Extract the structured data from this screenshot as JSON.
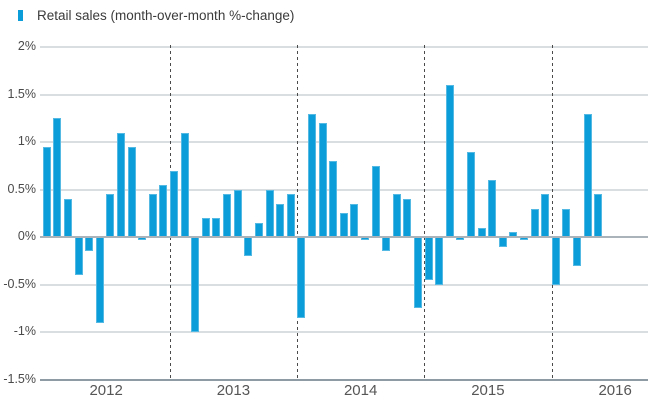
{
  "legend": {
    "label": "Retail sales (month-over-month %-change)"
  },
  "colors": {
    "bar": "#0b9dd9",
    "gridline": "#d9dee1",
    "zero_line": "#aab3ba",
    "axis_line": "#8e9ba4",
    "year_separator": "#4a4a4a",
    "tick_text": "#4a4a4a",
    "year_text": "#565656",
    "title_text": "#3b3b3b"
  },
  "chart_data": {
    "type": "bar",
    "title": "Retail sales (month-over-month %-change)",
    "xlabel": "",
    "ylabel": "",
    "ylim": [
      -1.5,
      2
    ],
    "grid": true,
    "legend_position": "top-left",
    "y_ticks": [
      {
        "value": 2,
        "label": "2%"
      },
      {
        "value": 1.5,
        "label": "1.5%"
      },
      {
        "value": 1,
        "label": "1%"
      },
      {
        "value": 0.5,
        "label": "0.5%"
      },
      {
        "value": 0,
        "label": "0%"
      },
      {
        "value": -0.5,
        "label": "-0.5%"
      },
      {
        "value": -1,
        "label": "-1%"
      },
      {
        "value": -1.5,
        "label": "-1.5%"
      }
    ],
    "x_year_labels": [
      "2012",
      "2013",
      "2014",
      "2015",
      "2016"
    ],
    "year_separators_before": [
      "2013",
      "2014",
      "2015",
      "2016"
    ],
    "x": [
      "2012-01",
      "2012-02",
      "2012-03",
      "2012-04",
      "2012-05",
      "2012-06",
      "2012-07",
      "2012-08",
      "2012-09",
      "2012-10",
      "2012-11",
      "2012-12",
      "2013-01",
      "2013-02",
      "2013-03",
      "2013-04",
      "2013-05",
      "2013-06",
      "2013-07",
      "2013-08",
      "2013-09",
      "2013-10",
      "2013-11",
      "2013-12",
      "2014-01",
      "2014-02",
      "2014-03",
      "2014-04",
      "2014-05",
      "2014-06",
      "2014-07",
      "2014-08",
      "2014-09",
      "2014-10",
      "2014-11",
      "2014-12",
      "2015-01",
      "2015-02",
      "2015-03",
      "2015-04",
      "2015-05",
      "2015-06",
      "2015-07",
      "2015-08",
      "2015-09",
      "2015-10",
      "2015-11",
      "2015-12",
      "2016-01",
      "2016-02",
      "2016-03",
      "2016-04",
      "2016-05"
    ],
    "values": [
      0.95,
      1.25,
      0.4,
      -0.4,
      -0.15,
      -0.9,
      0.45,
      1.1,
      0.95,
      -0.03,
      0.45,
      0.55,
      0.7,
      1.1,
      -1.0,
      0.2,
      0.2,
      0.45,
      0.5,
      -0.2,
      0.15,
      0.5,
      0.35,
      0.45,
      -0.85,
      1.3,
      1.2,
      0.8,
      0.25,
      0.35,
      -0.03,
      0.75,
      -0.15,
      0.45,
      0.4,
      -0.75,
      -0.45,
      -0.5,
      1.6,
      -0.03,
      0.9,
      0.1,
      0.6,
      -0.1,
      0.05,
      -0.03,
      0.3,
      0.45,
      -0.5,
      0.3,
      -0.3,
      1.3,
      0.45
    ]
  }
}
